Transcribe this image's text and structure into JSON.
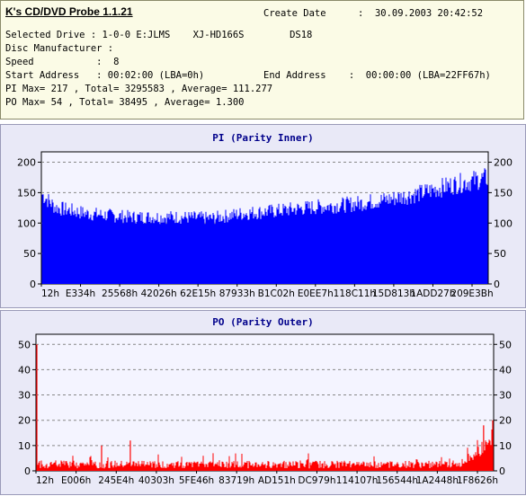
{
  "app": {
    "title": "K's CD/DVD Probe 1.1.21"
  },
  "info": {
    "create_date_label": "Create Date",
    "create_date_value": ":  30.09.2003 20:42:52",
    "selected_drive": "Selected Drive : 1-0-0 E:JLMS    XJ-HD166S        DS18",
    "disc_manufacturer": "Disc Manufacturer :",
    "speed": "Speed           :  8",
    "start_address": "Start Address   : 00:02:00 (LBA=0h)",
    "end_address": "End Address    :  00:00:00 (LBA=22FF67h)",
    "pi_summary": "PI Max= 217 , Total= 3295583 , Average= 111.277",
    "po_summary": "PO Max= 54 , Total= 38495 , Average= 1.300"
  },
  "chart_data": [
    {
      "type": "bar",
      "title": "PI (Parity Inner)",
      "color": "#0000ff",
      "ylim": [
        0,
        217
      ],
      "yticks": [
        0,
        50,
        100,
        150,
        200
      ],
      "xticks": [
        "12h",
        "E334h",
        "25568h",
        "42026h",
        "62E15h",
        "87933h",
        "B1C02h",
        "E0EE7h",
        "118C11h",
        "15D813h",
        "1ADD27h",
        "209E3Bh"
      ],
      "profile": [
        {
          "x": 0.0,
          "y": 150
        },
        {
          "x": 0.03,
          "y": 128
        },
        {
          "x": 0.1,
          "y": 118
        },
        {
          "x": 0.2,
          "y": 112
        },
        {
          "x": 0.3,
          "y": 112
        },
        {
          "x": 0.38,
          "y": 110
        },
        {
          "x": 0.45,
          "y": 118
        },
        {
          "x": 0.52,
          "y": 122
        },
        {
          "x": 0.6,
          "y": 128
        },
        {
          "x": 0.7,
          "y": 134
        },
        {
          "x": 0.78,
          "y": 142
        },
        {
          "x": 0.85,
          "y": 152
        },
        {
          "x": 0.92,
          "y": 166
        },
        {
          "x": 1.0,
          "y": 178
        }
      ],
      "grid": true
    },
    {
      "type": "bar",
      "title": "PO (Parity Outer)",
      "color": "#ff0000",
      "ylim": [
        0,
        54
      ],
      "yticks": [
        0,
        10,
        20,
        30,
        40,
        50
      ],
      "xticks": [
        "12h",
        "E006h",
        "245E4h",
        "40303h",
        "5FE46h",
        "83719h",
        "AD151h",
        "DC979h",
        "114107h",
        "156544h",
        "1A2448h",
        "1F8626h"
      ],
      "spikes": [
        {
          "x": 0.0,
          "y": 50
        },
        {
          "x": 0.142,
          "y": 10
        },
        {
          "x": 0.205,
          "y": 12
        },
        {
          "x": 0.98,
          "y": 18
        },
        {
          "x": 1.0,
          "y": 20
        }
      ],
      "grid": true
    }
  ]
}
